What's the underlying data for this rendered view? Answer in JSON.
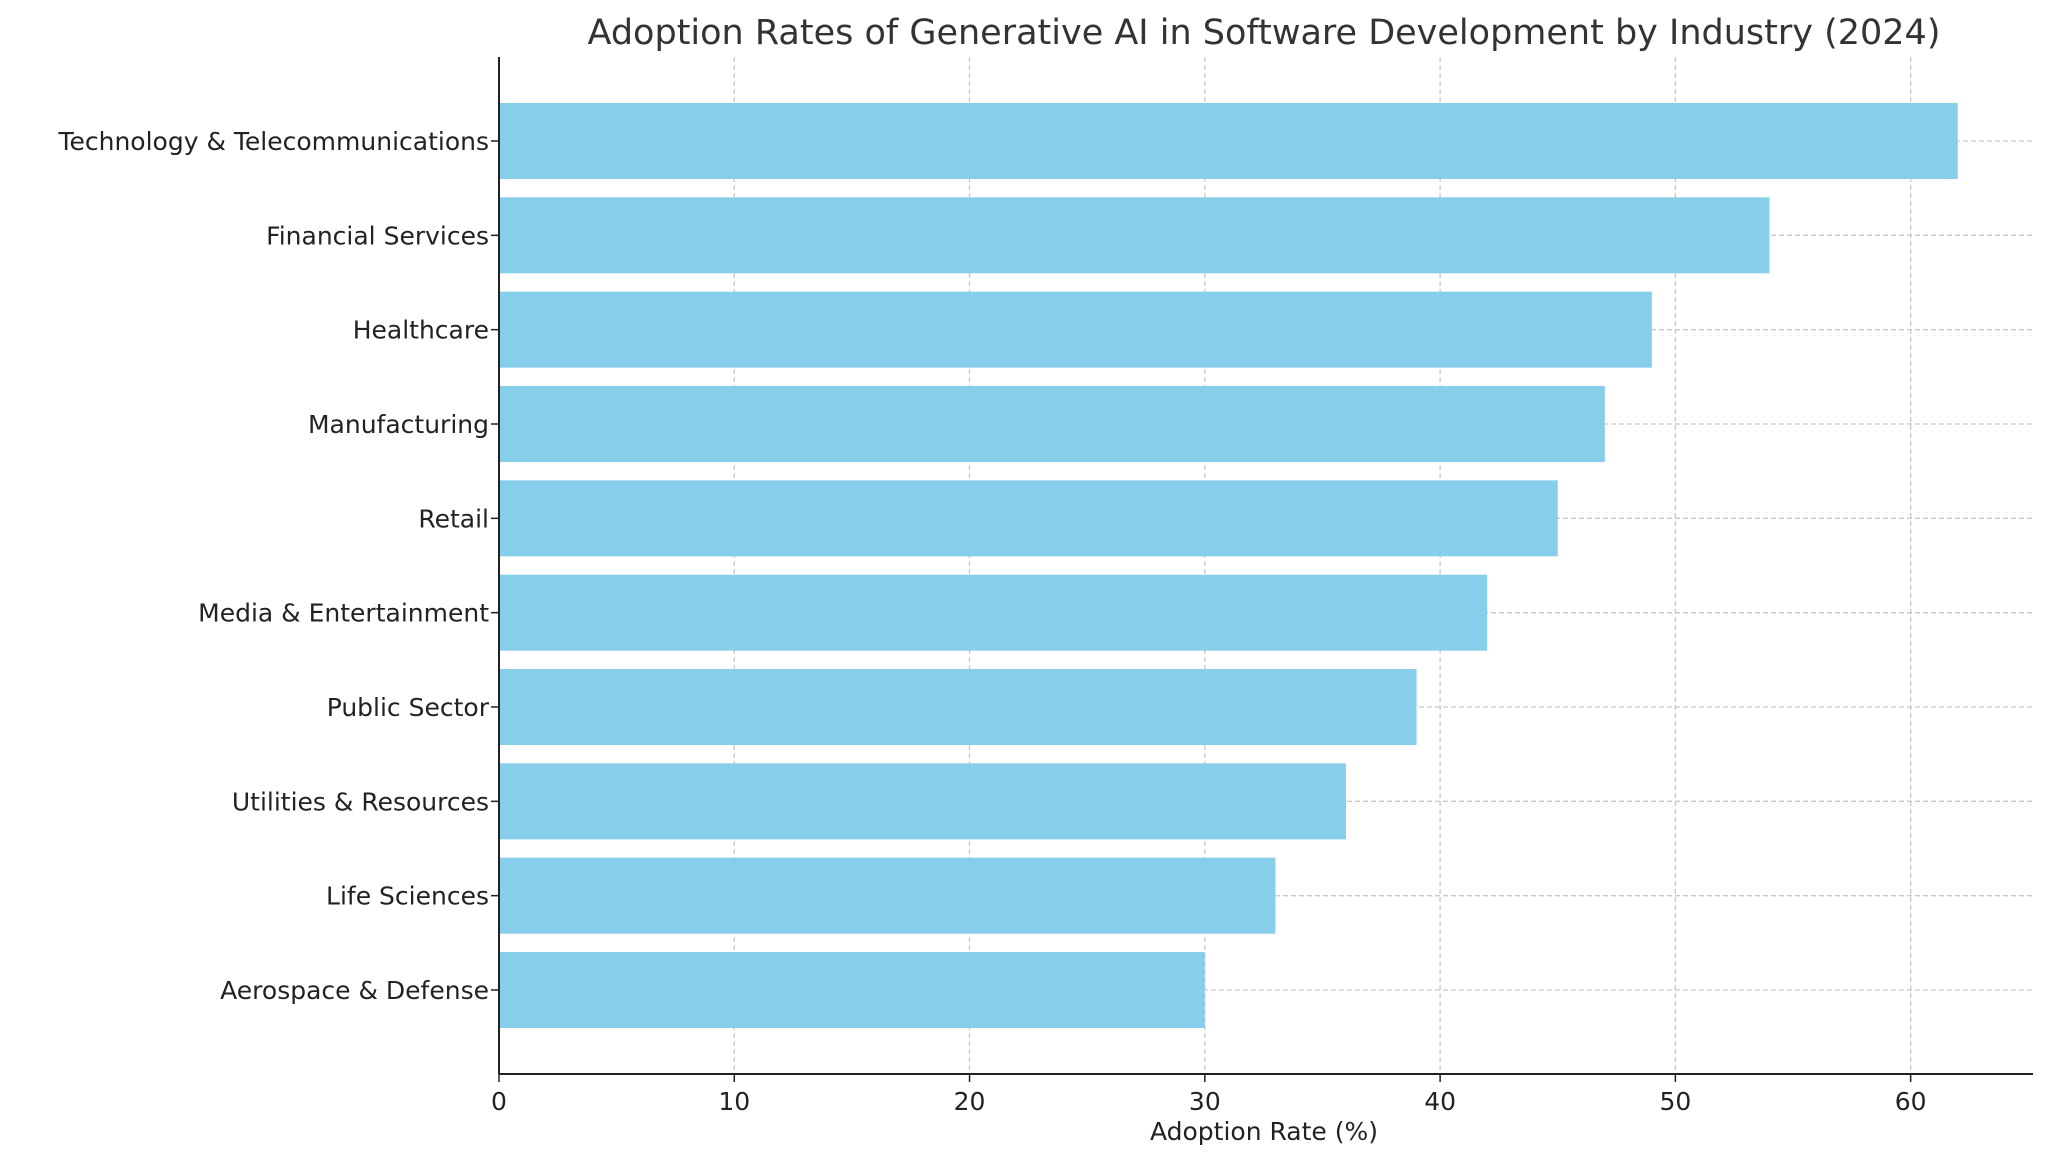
{
  "chart_data": {
    "type": "bar",
    "orientation": "horizontal",
    "title": "Adoption Rates of Generative AI in Software Development by Industry (2024)",
    "xlabel": "Adoption Rate (%)",
    "ylabel": "",
    "categories": [
      "Technology & Telecommunications",
      "Financial Services",
      "Healthcare",
      "Manufacturing",
      "Retail",
      "Media & Entertainment",
      "Public Sector",
      "Utilities & Resources",
      "Life Sciences",
      "Aerospace & Defense"
    ],
    "values": [
      62,
      54,
      49,
      47,
      45,
      42,
      39,
      36,
      33,
      30
    ],
    "xlim": [
      0,
      65.2
    ],
    "xticks": [
      "0",
      "10",
      "20",
      "30",
      "40",
      "50",
      "60"
    ],
    "grid": true,
    "bar_color": "#87ceeb",
    "legend": "none"
  }
}
